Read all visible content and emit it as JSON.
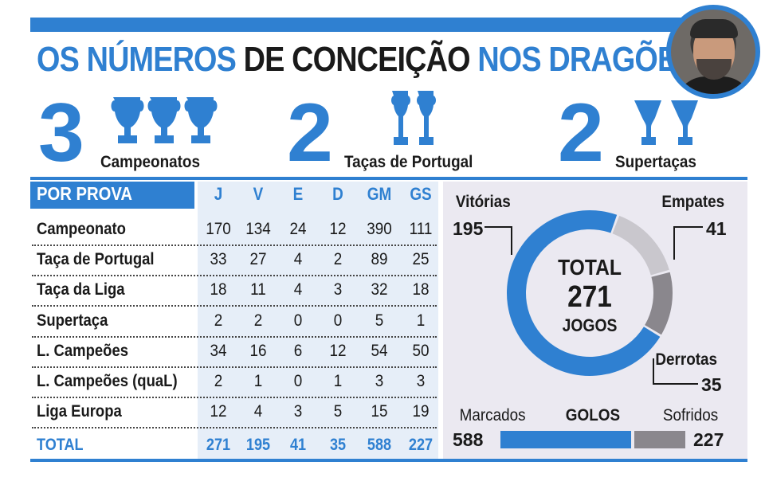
{
  "header": {
    "title_part1": "OS NÚMEROS",
    "title_part2": "DE CONCEIÇÃO",
    "title_part3": "NOS DRAGÕES"
  },
  "trophies": [
    {
      "count": "3",
      "label": "Campeonatos"
    },
    {
      "count": "2",
      "label": "Taças de Portugal"
    },
    {
      "count": "2",
      "label": "Supertaças"
    }
  ],
  "colors": {
    "blue": "#2f80d1",
    "light_gray": "#c9c7cd",
    "dark_gray": "#8a878d"
  },
  "chart_data": [
    {
      "type": "table",
      "title": "POR PROVA",
      "columns": [
        "J",
        "V",
        "E",
        "D",
        "GM",
        "GS"
      ],
      "rows": [
        {
          "name": "Campeonato",
          "values": [
            "170",
            "134",
            "24",
            "12",
            "390",
            "111"
          ]
        },
        {
          "name": "Taça de Portugal",
          "values": [
            "33",
            "27",
            "4",
            "2",
            "89",
            "25"
          ]
        },
        {
          "name": "Taça da Liga",
          "values": [
            "18",
            "11",
            "4",
            "3",
            "32",
            "18"
          ]
        },
        {
          "name": "Supertaça",
          "values": [
            "2",
            "2",
            "0",
            "0",
            "5",
            "1"
          ]
        },
        {
          "name": "L. Campeões",
          "values": [
            "34",
            "16",
            "6",
            "12",
            "54",
            "50"
          ]
        },
        {
          "name": "L. Campeões (quaL)",
          "values": [
            "2",
            "1",
            "0",
            "1",
            "3",
            "3"
          ]
        },
        {
          "name": "Liga Europa",
          "values": [
            "12",
            "4",
            "3",
            "5",
            "15",
            "19"
          ]
        }
      ],
      "total": {
        "name": "TOTAL",
        "values": [
          "271",
          "195",
          "41",
          "35",
          "588",
          "227"
        ]
      }
    },
    {
      "type": "pie",
      "variant": "donut",
      "slices": [
        {
          "label": "Vitórias",
          "value": 195,
          "color": "#2f80d1"
        },
        {
          "label": "Empates",
          "value": 41,
          "color": "#c9c7cd"
        },
        {
          "label": "Derrotas",
          "value": 35,
          "color": "#8a878d"
        }
      ],
      "center": {
        "line1": "TOTAL",
        "line2": "271",
        "line3": "JOGOS"
      }
    },
    {
      "type": "bar",
      "orientation": "horizontal-stacked",
      "title": "GOLOS",
      "categories": [
        "Marcados",
        "Sofridos"
      ],
      "values": [
        588,
        227
      ],
      "colors": [
        "#2f80d1",
        "#8a878d"
      ]
    }
  ]
}
